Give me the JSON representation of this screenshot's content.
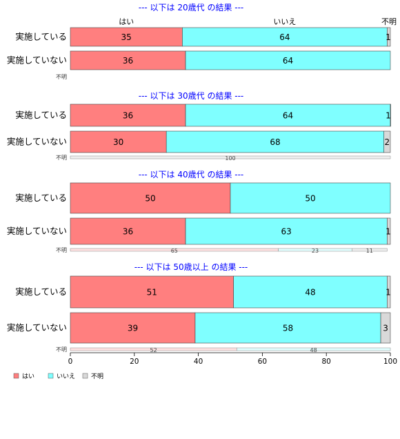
{
  "chart_data": {
    "type": "bar",
    "orientation": "horizontal",
    "stacked": true,
    "xlim": [
      0,
      100
    ],
    "x_ticks": [
      0,
      20,
      40,
      60,
      80,
      100
    ],
    "colors": {
      "yes": "#ff7f7f",
      "no": "#7fffff",
      "unknown": "#d9d9d9",
      "title": "#0000ff"
    },
    "legend": {
      "placement": "bottom-left",
      "items": [
        {
          "key": "yes",
          "label": "はい"
        },
        {
          "key": "no",
          "label": "いいえ"
        },
        {
          "key": "unknown",
          "label": "不明"
        }
      ]
    },
    "column_headers": {
      "yes": "はい",
      "no": "いいえ",
      "unknown": "不明"
    },
    "panels": [
      {
        "title": "--- 以下は 20歳代 の結果 ---",
        "categories": [
          "実施している",
          "実施していない"
        ],
        "series": [
          {
            "name": "はい",
            "values": [
              35,
              36
            ]
          },
          {
            "name": "いいえ",
            "values": [
              64,
              64
            ]
          },
          {
            "name": "不明",
            "values": [
              1,
              0
            ]
          }
        ],
        "unknown_row": {
          "label": "不明",
          "values": []
        }
      },
      {
        "title": "--- 以下は 30歳代 の結果 ---",
        "categories": [
          "実施している",
          "実施していない"
        ],
        "series": [
          {
            "name": "はい",
            "values": [
              36,
              30
            ]
          },
          {
            "name": "いいえ",
            "values": [
              64,
              68
            ]
          },
          {
            "name": "不明",
            "values": [
              1,
              2
            ]
          }
        ],
        "unknown_row": {
          "label": "不明",
          "values": [
            0,
            0,
            100
          ]
        }
      },
      {
        "title": "--- 以下は 40歳代 の結果 ---",
        "categories": [
          "実施している",
          "実施していない"
        ],
        "series": [
          {
            "name": "はい",
            "values": [
              50,
              36
            ]
          },
          {
            "name": "いいえ",
            "values": [
              50,
              63
            ]
          },
          {
            "name": "不明",
            "values": [
              0,
              1
            ]
          }
        ],
        "unknown_row": {
          "label": "不明",
          "values": [
            65,
            23,
            11
          ]
        }
      },
      {
        "title": "--- 以下は 50歳以上 の結果 ---",
        "categories": [
          "実施している",
          "実施していない"
        ],
        "series": [
          {
            "name": "はい",
            "values": [
              51,
              39
            ]
          },
          {
            "name": "いいえ",
            "values": [
              48,
              58
            ]
          },
          {
            "name": "不明",
            "values": [
              1,
              3
            ]
          }
        ],
        "unknown_row": {
          "label": "不明",
          "values": [
            52,
            48,
            0
          ]
        }
      }
    ]
  }
}
